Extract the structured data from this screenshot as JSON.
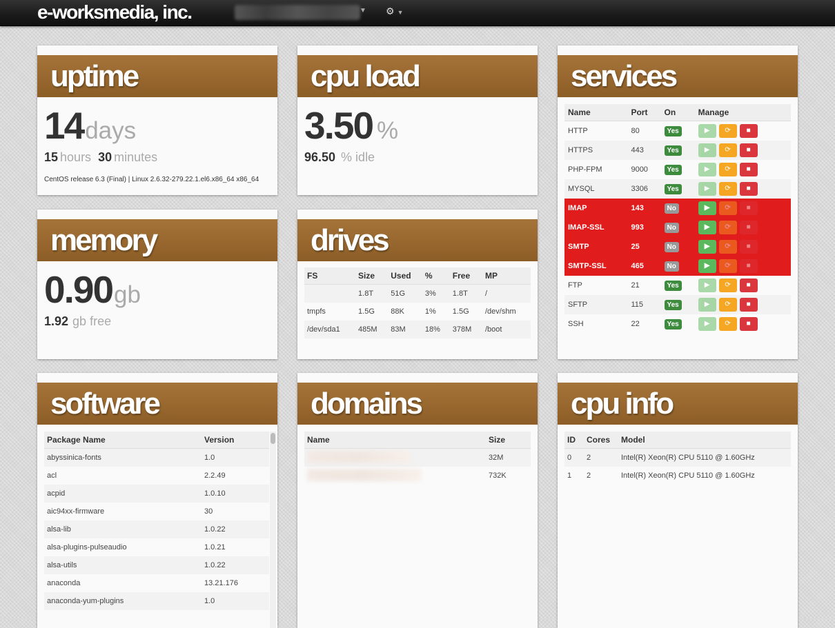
{
  "nav": {
    "brand": "e-worksmedia, inc.",
    "settings_icon": "gear-icon"
  },
  "uptime": {
    "title": "uptime",
    "days": "14",
    "days_unit": "days",
    "hours": "15",
    "hours_unit": "hours",
    "minutes": "30",
    "minutes_unit": "minutes",
    "os": "CentOS release 6.3 (Final) | Linux 2.6.32-279.22.1.el6.x86_64 x86_64"
  },
  "cpu_load": {
    "title": "cpu load",
    "value": "3.50",
    "unit": "%",
    "idle": "96.50",
    "idle_unit": "% idle"
  },
  "memory": {
    "title": "memory",
    "value": "0.90",
    "unit": "gb",
    "free": "1.92",
    "free_unit": "gb free"
  },
  "drives": {
    "title": "drives",
    "headers": [
      "FS",
      "Size",
      "Used",
      "%",
      "Free",
      "MP"
    ],
    "rows": [
      [
        "",
        "1.8T",
        "51G",
        "3%",
        "1.8T",
        "/"
      ],
      [
        "tmpfs",
        "1.5G",
        "88K",
        "1%",
        "1.5G",
        "/dev/shm"
      ],
      [
        "/dev/sda1",
        "485M",
        "83M",
        "18%",
        "378M",
        "/boot"
      ]
    ]
  },
  "services": {
    "title": "services",
    "headers": [
      "Name",
      "Port",
      "On",
      "Manage"
    ],
    "rows": [
      {
        "name": "HTTP",
        "port": "80",
        "on": "Yes",
        "status": "up"
      },
      {
        "name": "HTTPS",
        "port": "443",
        "on": "Yes",
        "status": "up"
      },
      {
        "name": "PHP-FPM",
        "port": "9000",
        "on": "Yes",
        "status": "up"
      },
      {
        "name": "MYSQL",
        "port": "3306",
        "on": "Yes",
        "status": "up"
      },
      {
        "name": "IMAP",
        "port": "143",
        "on": "No",
        "status": "down"
      },
      {
        "name": "IMAP-SSL",
        "port": "993",
        "on": "No",
        "status": "down"
      },
      {
        "name": "SMTP",
        "port": "25",
        "on": "No",
        "status": "down"
      },
      {
        "name": "SMTP-SSL",
        "port": "465",
        "on": "No",
        "status": "down"
      },
      {
        "name": "FTP",
        "port": "21",
        "on": "Yes",
        "status": "up"
      },
      {
        "name": "SFTP",
        "port": "115",
        "on": "Yes",
        "status": "up"
      },
      {
        "name": "SSH",
        "port": "22",
        "on": "Yes",
        "status": "up"
      }
    ],
    "icons": {
      "start": "play-icon",
      "restart": "refresh-icon",
      "stop": "stop-icon"
    }
  },
  "software": {
    "title": "software",
    "headers": [
      "Package Name",
      "Version"
    ],
    "rows": [
      [
        "abyssinica-fonts",
        "1.0"
      ],
      [
        "acl",
        "2.2.49"
      ],
      [
        "acpid",
        "1.0.10"
      ],
      [
        "aic94xx-firmware",
        "30"
      ],
      [
        "alsa-lib",
        "1.0.22"
      ],
      [
        "alsa-plugins-pulseaudio",
        "1.0.21"
      ],
      [
        "alsa-utils",
        "1.0.22"
      ],
      [
        "anaconda",
        "13.21.176"
      ],
      [
        "anaconda-yum-plugins",
        "1.0"
      ]
    ]
  },
  "domains": {
    "title": "domains",
    "headers": [
      "Name",
      "Size"
    ],
    "rows": [
      {
        "size": "32M"
      },
      {
        "size": "732K"
      }
    ]
  },
  "cpu_info": {
    "title": "cpu info",
    "headers": [
      "ID",
      "Cores",
      "Model"
    ],
    "rows": [
      [
        "0",
        "2",
        "Intel(R) Xeon(R) CPU 5110 @ 1.60GHz"
      ],
      [
        "1",
        "2",
        "Intel(R) Xeon(R) CPU 5110 @ 1.60GHz"
      ]
    ]
  }
}
